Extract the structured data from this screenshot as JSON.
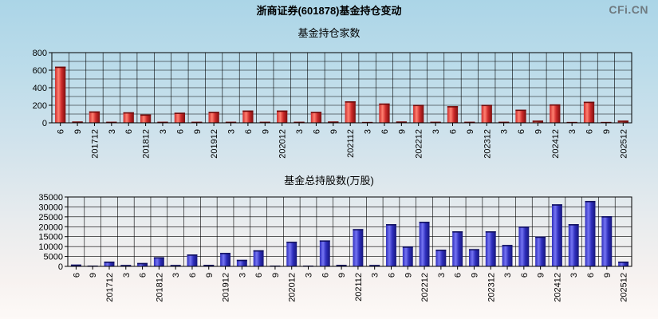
{
  "header": {
    "title": "浙商证券(601878)基金持仓变动",
    "watermark": "CFi.CN"
  },
  "chart_data": [
    {
      "type": "bar",
      "title": "基金持仓家数",
      "categories": [
        "6",
        "9",
        "201712",
        "3",
        "6",
        "201812",
        "3",
        "6",
        "9",
        "201912",
        "3",
        "6",
        "9",
        "202012",
        "3",
        "6",
        "9",
        "202112",
        "3",
        "6",
        "9",
        "202212",
        "3",
        "6",
        "9",
        "202312",
        "3",
        "6",
        "9",
        "202412",
        "3",
        "6",
        "9",
        "202512"
      ],
      "values": [
        640,
        15,
        130,
        12,
        120,
        95,
        12,
        115,
        12,
        125,
        12,
        140,
        12,
        140,
        12,
        125,
        15,
        245,
        10,
        220,
        15,
        205,
        12,
        190,
        12,
        205,
        12,
        150,
        25,
        210,
        10,
        240,
        10,
        25
      ],
      "xlabel": "",
      "ylabel": "",
      "ylim": [
        0,
        800
      ],
      "ytick_step": 200,
      "grid_step": 100,
      "grid": true,
      "legend_position": "none",
      "bar_style": {
        "main": "#cc2a2a",
        "highlight": "#ff8070",
        "dark": "#7c0f0f",
        "cap": "#6e0c0c"
      }
    },
    {
      "type": "bar",
      "title": "基金总持股数(万股)",
      "categories": [
        "6",
        "9",
        "201712",
        "3",
        "6",
        "201812",
        "3",
        "6",
        "9",
        "201912",
        "3",
        "6",
        "9",
        "202012",
        "3",
        "6",
        "9",
        "202112",
        "3",
        "6",
        "9",
        "202212",
        "3",
        "6",
        "9",
        "202312",
        "3",
        "6",
        "9",
        "202412",
        "3",
        "6",
        "9",
        "202512"
      ],
      "values": [
        900,
        300,
        2400,
        700,
        1700,
        4600,
        700,
        6000,
        800,
        6800,
        3300,
        8100,
        300,
        12400,
        300,
        13100,
        800,
        18800,
        700,
        21300,
        10000,
        22500,
        8400,
        17700,
        8700,
        17700,
        10800,
        20100,
        15000,
        31300,
        21300,
        33000,
        25300,
        2400
      ],
      "xlabel": "",
      "ylabel": "",
      "ylim": [
        0,
        35000
      ],
      "ytick_step": 5000,
      "grid_step": 5000,
      "grid": true,
      "legend_position": "none",
      "bar_style": {
        "main": "#2e2ebc",
        "highlight": "#7474f2",
        "dark": "#16167a",
        "cap": "#10105e"
      }
    }
  ],
  "axis_colors": {
    "grid": "#000000",
    "frame": "#000000",
    "text": "#000000"
  }
}
